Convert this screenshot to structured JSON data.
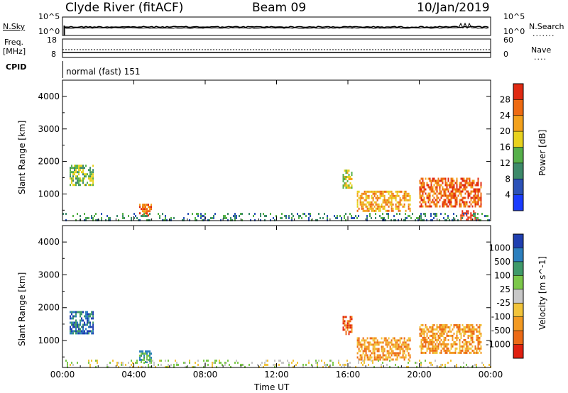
{
  "header": {
    "station": "Clyde River (fitACF)",
    "beam": "Beam 09",
    "date": "10/Jan/2019"
  },
  "top_panels": {
    "nsky_label": "N.Sky",
    "nsearch_label": "N.Search",
    "noise_ticks": [
      "10^5",
      "10^0"
    ],
    "freq_label_1": "Freq.",
    "freq_label_2": "[MHz]",
    "freq_ticks": [
      "18",
      "8"
    ],
    "nave_label": "Nave",
    "nave_ticks": [
      "60",
      "0"
    ],
    "cpid_label": "CPID",
    "cpid_value": "normal (fast) 151"
  },
  "chart_data": [
    {
      "type": "heatmap",
      "title": "",
      "parameter": "Power [dB]",
      "ylabel": "Slant Range [km]",
      "xlabel": "Time UT",
      "x_ticks": [
        "00:00",
        "04:00",
        "08:00",
        "12:00",
        "16:00",
        "20:00",
        "00:00"
      ],
      "xlim_hours": [
        0,
        24
      ],
      "y_ticks": [
        1000,
        2000,
        3000,
        4000
      ],
      "ylim_km": [
        180,
        4500
      ],
      "colorbar_ticks": [
        4,
        8,
        12,
        16,
        20,
        24,
        28
      ],
      "colorbar_colors": [
        "#1a3cff",
        "#2c52b8",
        "#3d8a6a",
        "#56b04a",
        "#e8d21e",
        "#f3a11c",
        "#ee6a12",
        "#e02a12"
      ],
      "echo_regions": [
        {
          "start_hour": 0.4,
          "end_hour": 1.7,
          "range_km": [
            1250,
            1900
          ],
          "level": 3
        },
        {
          "start_hour": 4.3,
          "end_hour": 5.0,
          "range_km": [
            350,
            700
          ],
          "level": 6
        },
        {
          "start_hour": 15.7,
          "end_hour": 16.2,
          "range_km": [
            1200,
            1750
          ],
          "level": 4
        },
        {
          "start_hour": 16.5,
          "end_hour": 19.5,
          "range_km": [
            450,
            1100
          ],
          "level": 5
        },
        {
          "start_hour": 20.0,
          "end_hour": 23.5,
          "range_km": [
            600,
            1500
          ],
          "level": 6
        },
        {
          "start_hour": 22.3,
          "end_hour": 23.3,
          "range_km": [
            200,
            500
          ],
          "level": 7
        },
        {
          "start_hour": 0.0,
          "end_hour": 24.0,
          "range_km": [
            180,
            420
          ],
          "level": 2
        }
      ]
    },
    {
      "type": "heatmap",
      "title": "",
      "parameter": "Velocity [m s^-1]",
      "ylabel": "Slant Range [km]",
      "xlabel": "Time UT",
      "x_ticks": [
        "00:00",
        "04:00",
        "08:00",
        "12:00",
        "16:00",
        "20:00",
        "00:00"
      ],
      "xlim_hours": [
        0,
        24
      ],
      "y_ticks": [
        1000,
        2000,
        3000,
        4000
      ],
      "ylim_km": [
        180,
        4500
      ],
      "colorbar_ticks": [
        1000,
        500,
        100,
        25,
        -25,
        -100,
        -500,
        -1000
      ],
      "colorbar_colors": [
        "#1f3fb0",
        "#2c7fbe",
        "#3f9a6a",
        "#7cc84a",
        "#c8c8c8",
        "#f2c43a",
        "#f39a22",
        "#ec6a16",
        "#e02010"
      ],
      "echo_regions": [
        {
          "start_hour": 0.4,
          "end_hour": 1.7,
          "range_km": [
            1250,
            1900
          ],
          "level": 1
        },
        {
          "start_hour": 4.3,
          "end_hour": 5.0,
          "range_km": [
            350,
            700
          ],
          "level": 2
        },
        {
          "start_hour": 15.7,
          "end_hour": 16.2,
          "range_km": [
            1200,
            1750
          ],
          "level": 7
        },
        {
          "start_hour": 16.5,
          "end_hour": 19.5,
          "range_km": [
            450,
            1100
          ],
          "level": 6
        },
        {
          "start_hour": 20.0,
          "end_hour": 23.5,
          "range_km": [
            600,
            1500
          ],
          "level": 6
        },
        {
          "start_hour": 0.0,
          "end_hour": 24.0,
          "range_km": [
            180,
            420
          ],
          "level": 4
        }
      ]
    }
  ],
  "colorbars": {
    "power_label": "Power [dB]",
    "velocity_label": "Velocity [m s^-1]"
  },
  "time_axis_label": "Time UT"
}
